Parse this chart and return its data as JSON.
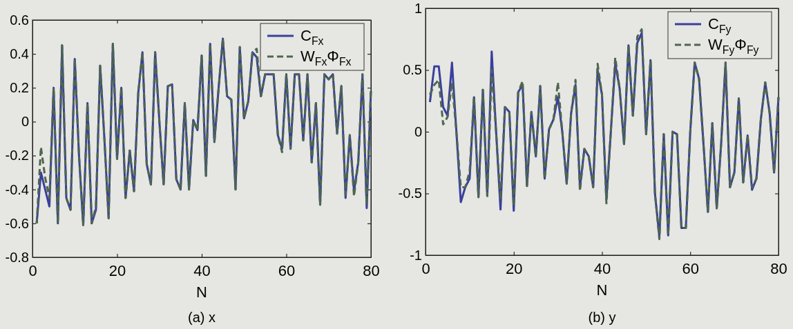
{
  "chart_data": [
    {
      "type": "line",
      "xlabel": "N",
      "annotations": [
        "(a) x"
      ],
      "legend": "top right",
      "x": [
        1,
        2,
        3,
        4,
        5,
        6,
        7,
        8,
        9,
        10,
        11,
        12,
        13,
        14,
        15,
        16,
        17,
        18,
        19,
        20,
        21,
        22,
        23,
        24,
        25,
        26,
        27,
        28,
        29,
        30,
        31,
        32,
        33,
        34,
        35,
        36,
        37,
        38,
        39,
        40,
        41,
        42,
        43,
        44,
        45,
        46,
        47,
        48,
        49,
        50,
        51,
        52,
        53,
        54,
        55,
        56,
        57,
        58,
        59,
        60,
        61,
        62,
        63,
        64,
        65,
        66,
        67,
        68,
        69,
        70,
        71,
        72,
        73,
        74,
        75,
        76,
        77,
        78,
        79,
        80
      ],
      "xlim": [
        0,
        80
      ],
      "xticks": [
        0,
        20,
        40,
        60,
        80
      ],
      "ylim": [
        -0.8,
        0.6
      ],
      "yticks": [
        -0.8,
        -0.6,
        -0.4,
        -0.2,
        0,
        0.2,
        0.4,
        0.6
      ],
      "series": [
        {
          "name": "C$_{Fx}$",
          "color": "#3b3f9c",
          "line_style": "solid",
          "values": [
            -0.6,
            -0.3,
            -0.4,
            -0.5,
            0.2,
            -0.6,
            0.45,
            -0.45,
            -0.52,
            0.37,
            -0.2,
            -0.61,
            0.11,
            -0.6,
            -0.52,
            0.33,
            -0.1,
            -0.57,
            0.46,
            -0.22,
            0.2,
            -0.45,
            -0.17,
            -0.41,
            0.17,
            0.41,
            -0.25,
            -0.37,
            0.41,
            0,
            -0.37,
            0.21,
            0.22,
            -0.34,
            -0.4,
            0.11,
            -0.4,
            0.01,
            -0.05,
            0.39,
            -0.32,
            0.46,
            -0.12,
            0.2,
            0.49,
            0.15,
            0.13,
            -0.4,
            0.44,
            0.02,
            0.12,
            0.41,
            0.38,
            0.15,
            0.28,
            0.28,
            0.28,
            -0.08,
            -0.16,
            0.28,
            -0.16,
            0.28,
            0.28,
            -0.11,
            0.28,
            -0.24,
            0.11,
            -0.49,
            0.28,
            0.25,
            0.28,
            -0.07,
            0.21,
            -0.45,
            -0.08,
            -0.41,
            -0.24,
            0.28,
            -0.51,
            0.18
          ]
        },
        {
          "name": "W$_{Fx}$Φ$_{Fx}$",
          "color": "#4d6650",
          "line_style": "dashed",
          "values": [
            -0.6,
            -0.15,
            -0.33,
            -0.45,
            0.2,
            -0.6,
            0.45,
            -0.45,
            -0.52,
            0.37,
            -0.2,
            -0.61,
            0.11,
            -0.6,
            -0.5,
            0.33,
            -0.1,
            -0.57,
            0.46,
            -0.22,
            0.2,
            -0.45,
            -0.17,
            -0.41,
            0.17,
            0.41,
            -0.25,
            -0.37,
            0.41,
            0,
            -0.37,
            0.21,
            0.22,
            -0.34,
            -0.4,
            0.11,
            -0.4,
            0.01,
            -0.05,
            0.39,
            -0.32,
            0.46,
            -0.12,
            0.2,
            0.49,
            0.15,
            0.13,
            -0.4,
            0.44,
            0.02,
            0.12,
            0.41,
            0.43,
            0.15,
            0.28,
            0.28,
            0.28,
            -0.08,
            -0.18,
            0.28,
            -0.16,
            0.28,
            0.28,
            -0.11,
            0.28,
            -0.24,
            0.11,
            -0.49,
            0.28,
            0.25,
            0.28,
            -0.07,
            0.21,
            -0.43,
            -0.08,
            -0.44,
            -0.24,
            0.28,
            -0.49,
            0.2
          ]
        }
      ]
    },
    {
      "type": "line",
      "xlabel": "N",
      "annotations": [
        "(b) y"
      ],
      "legend": "top right",
      "x": [
        1,
        2,
        3,
        4,
        5,
        6,
        7,
        8,
        9,
        10,
        11,
        12,
        13,
        14,
        15,
        16,
        17,
        18,
        19,
        20,
        21,
        22,
        23,
        24,
        25,
        26,
        27,
        28,
        29,
        30,
        31,
        32,
        33,
        34,
        35,
        36,
        37,
        38,
        39,
        40,
        41,
        42,
        43,
        44,
        45,
        46,
        47,
        48,
        49,
        50,
        51,
        52,
        53,
        54,
        55,
        56,
        57,
        58,
        59,
        60,
        61,
        62,
        63,
        64,
        65,
        66,
        67,
        68,
        69,
        70,
        71,
        72,
        73,
        74,
        75,
        76,
        77,
        78,
        79,
        80
      ],
      "xlim": [
        0,
        80
      ],
      "xticks": [
        0,
        20,
        40,
        60,
        80
      ],
      "ylim": [
        -1,
        1
      ],
      "yticks": [
        -1,
        -0.5,
        0,
        0.5,
        1
      ],
      "series": [
        {
          "name": "C$_{Fy}$",
          "color": "#3b3f9c",
          "line_style": "solid",
          "values": [
            0.24,
            0.53,
            0.53,
            0.2,
            0.13,
            0.56,
            0,
            -0.57,
            -0.45,
            -0.38,
            0.28,
            -0.53,
            0.34,
            -0.52,
            0.65,
            0,
            -0.63,
            0.2,
            0.16,
            -0.64,
            0.32,
            0.38,
            -0.44,
            0.16,
            -0.2,
            0.37,
            -0.38,
            0.02,
            0.1,
            0.28,
            0,
            -0.42,
            0.15,
            0.38,
            -0.45,
            -0.14,
            -0.2,
            -0.45,
            0.5,
            0.3,
            -0.55,
            0,
            0.55,
            0.35,
            -0.1,
            0.7,
            0.13,
            0.72,
            0.8,
            -0.02,
            0.58,
            -0.5,
            -0.85,
            -0.02,
            -0.84,
            0,
            -0.02,
            -0.78,
            -0.78,
            0,
            0.56,
            0.43,
            -0.1,
            -0.65,
            0.07,
            -0.62,
            -0.1,
            0.56,
            -0.45,
            -0.33,
            0.27,
            -0.41,
            -0.03,
            -0.47,
            -0.38,
            0.1,
            0.4,
            0.15,
            -0.33,
            0.28
          ]
        },
        {
          "name": "W$_{Fy}$Φ$_{Fy}$",
          "color": "#4d6650",
          "line_style": "dashed",
          "values": [
            0.3,
            0.38,
            0.42,
            0.06,
            0.12,
            0.4,
            0,
            -0.45,
            -0.45,
            -0.32,
            0.28,
            -0.53,
            0.34,
            -0.52,
            0.5,
            0,
            -0.55,
            0.2,
            0.16,
            -0.6,
            0.32,
            0.41,
            -0.44,
            0.16,
            -0.2,
            0.37,
            -0.38,
            0.02,
            0.1,
            0.4,
            0,
            -0.42,
            0.15,
            0.42,
            -0.48,
            -0.14,
            -0.2,
            -0.45,
            0.55,
            0.3,
            -0.58,
            0,
            0.6,
            0.35,
            -0.1,
            0.7,
            0.13,
            0.77,
            0.83,
            -0.02,
            0.58,
            -0.5,
            -0.87,
            -0.02,
            -0.84,
            0,
            -0.02,
            -0.78,
            -0.78,
            0,
            0.56,
            0.43,
            -0.1,
            -0.65,
            0.07,
            -0.62,
            -0.1,
            0.56,
            -0.45,
            -0.33,
            0.27,
            -0.41,
            -0.03,
            -0.45,
            -0.38,
            0.1,
            0.4,
            0.15,
            -0.33,
            0.28
          ]
        }
      ]
    }
  ]
}
